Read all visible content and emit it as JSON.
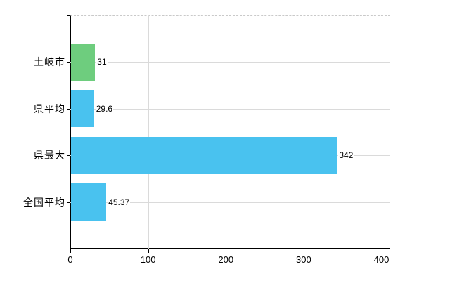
{
  "chart_data": {
    "type": "bar",
    "orientation": "horizontal",
    "title": "",
    "categories": [
      "土岐市",
      "県平均",
      "県最大",
      "全国平均"
    ],
    "values": [
      31,
      29.6,
      342,
      45.37
    ],
    "value_labels": [
      "31",
      "29.6",
      "342",
      "45.37"
    ],
    "bar_colors": [
      "#6ecd7e",
      "#49c2ef",
      "#49c2ef",
      "#49c2ef"
    ],
    "xlim": [
      0,
      400
    ],
    "x_ticks": [
      0,
      100,
      200,
      300,
      400
    ],
    "x_tick_labels": [
      "0",
      "100",
      "200",
      "300",
      "400"
    ],
    "grid": "on",
    "legend": false,
    "colors": {
      "axis": "#000000",
      "grid": "#dadada",
      "border_dash": "#c9c9c9",
      "text": "#000000",
      "background": "#ffffff"
    }
  }
}
